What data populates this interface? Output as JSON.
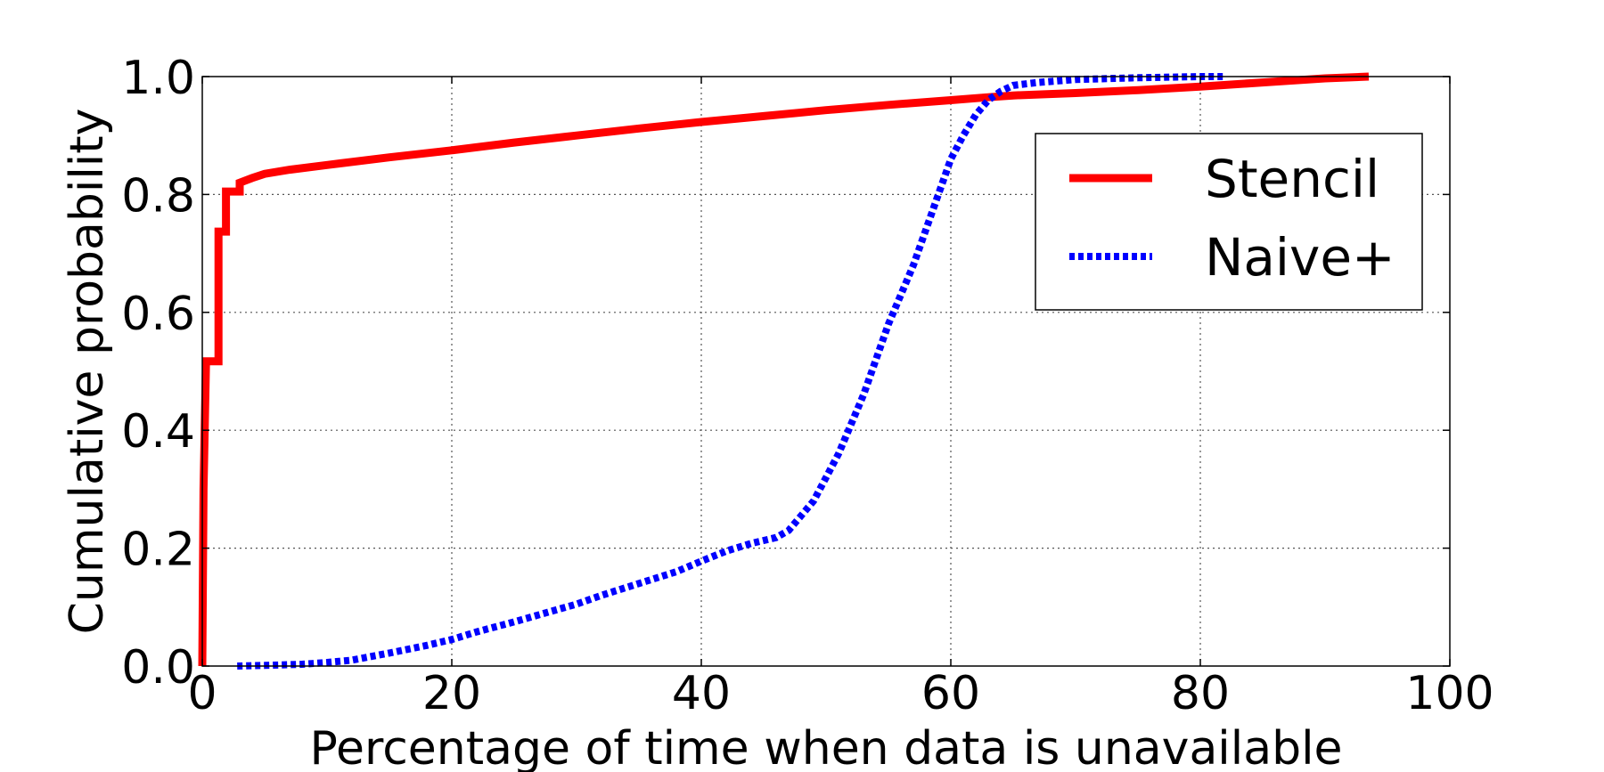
{
  "chart_data": {
    "type": "line",
    "title": "",
    "xlabel": "Percentage of time when data is unavailable",
    "ylabel": "Cumulative probability",
    "xlim": [
      0,
      100
    ],
    "ylim": [
      0,
      1.0
    ],
    "x_ticks": [
      "0",
      "20",
      "40",
      "60",
      "80",
      "100"
    ],
    "y_ticks": [
      "0.0",
      "0.2",
      "0.4",
      "0.6",
      "0.8",
      "1.0"
    ],
    "grid": true,
    "legend_position": "upper-right",
    "series": [
      {
        "name": "Stencil",
        "color": "#ff0000",
        "style": "solid",
        "x": [
          0,
          0.1,
          0.3,
          0.6,
          0.6,
          1.3,
          1.3,
          1.9,
          1.9,
          3.0,
          3.0,
          4.0,
          5.0,
          7.0,
          10.0,
          15.0,
          20.0,
          25.0,
          30.0,
          35.0,
          40.0,
          45.0,
          50.0,
          55.0,
          60.0,
          63.0,
          65.0,
          70.0,
          75.0,
          80.0,
          85.0,
          90.0,
          93.5
        ],
        "y": [
          0.0,
          0.3,
          0.517,
          0.517,
          0.517,
          0.517,
          0.737,
          0.737,
          0.805,
          0.805,
          0.82,
          0.828,
          0.835,
          0.842,
          0.85,
          0.863,
          0.875,
          0.888,
          0.9,
          0.912,
          0.923,
          0.933,
          0.943,
          0.952,
          0.96,
          0.965,
          0.968,
          0.972,
          0.977,
          0.983,
          0.99,
          0.997,
          1.0
        ]
      },
      {
        "name": "Naive+",
        "color": "#0000ff",
        "style": "dotted",
        "x": [
          2.8,
          5.0,
          8.0,
          10.0,
          12.0,
          15.0,
          18.0,
          20.0,
          22.0,
          25.0,
          28.0,
          30.0,
          32.0,
          35.0,
          38.0,
          40.0,
          42.0,
          44.0,
          46.0,
          47.0,
          48.0,
          49.0,
          50.0,
          51.0,
          52.0,
          53.0,
          54.0,
          55.0,
          56.0,
          57.0,
          58.0,
          59.0,
          60.0,
          61.0,
          62.0,
          63.0,
          64.0,
          65.0,
          67.0,
          70.0,
          75.0,
          80.0,
          82.0
        ],
        "y": [
          0.0,
          0.001,
          0.003,
          0.006,
          0.01,
          0.022,
          0.035,
          0.045,
          0.058,
          0.075,
          0.093,
          0.105,
          0.12,
          0.14,
          0.16,
          0.178,
          0.195,
          0.208,
          0.218,
          0.23,
          0.255,
          0.28,
          0.32,
          0.36,
          0.41,
          0.46,
          0.52,
          0.58,
          0.63,
          0.68,
          0.74,
          0.8,
          0.86,
          0.9,
          0.935,
          0.96,
          0.975,
          0.985,
          0.99,
          0.995,
          0.998,
          1.0,
          1.0
        ]
      }
    ]
  }
}
